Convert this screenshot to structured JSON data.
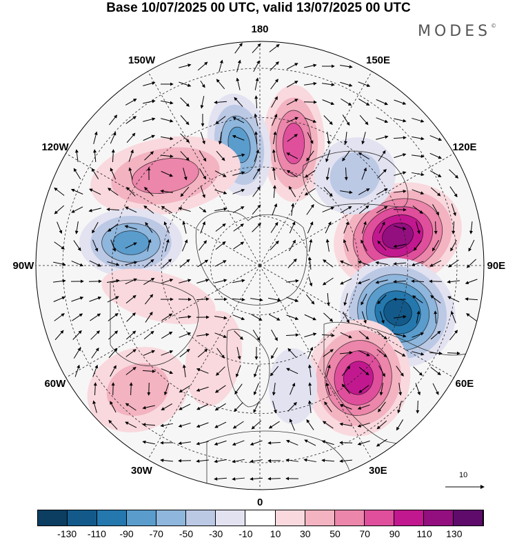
{
  "header": {
    "title": "Base 10/07/2025 00 UTC, valid 13/07/2025 00 UTC",
    "brand": "MODES"
  },
  "map": {
    "projection": "north-polar-stereographic",
    "longitude_labels": [
      {
        "lon": 180,
        "text": "180"
      },
      {
        "lon": 150,
        "text": "150E"
      },
      {
        "lon": 120,
        "text": "120E"
      },
      {
        "lon": 90,
        "text": "90E"
      },
      {
        "lon": 60,
        "text": "60E"
      },
      {
        "lon": 30,
        "text": "30E"
      },
      {
        "lon": 0,
        "text": "0"
      },
      {
        "lon": -30,
        "text": "30W"
      },
      {
        "lon": -60,
        "text": "60W"
      },
      {
        "lon": -90,
        "text": "90W"
      },
      {
        "lon": -120,
        "text": "120W"
      },
      {
        "lon": -150,
        "text": "150W"
      }
    ],
    "reference_vector": "10",
    "anomaly_centers": [
      {
        "sign": "positive",
        "level": 130
      },
      {
        "sign": "negative",
        "level": -130
      },
      {
        "sign": "positive",
        "level": 110
      },
      {
        "sign": "positive",
        "level": 90
      },
      {
        "sign": "negative",
        "level": -90
      },
      {
        "sign": "positive",
        "level": 70
      },
      {
        "sign": "negative",
        "level": -90
      },
      {
        "sign": "positive",
        "level": 50
      },
      {
        "sign": "negative",
        "level": -50
      },
      {
        "sign": "positive",
        "level": 30
      },
      {
        "sign": "negative",
        "level": -30
      },
      {
        "sign": "positive",
        "level": 30
      }
    ]
  },
  "colorbar": {
    "colors": [
      "#0b3e61",
      "#135a8a",
      "#2478ae",
      "#5a9ccc",
      "#8fb6dc",
      "#bcc9e5",
      "#e2e2f1",
      "#ffffff",
      "#f9d9de",
      "#f3b3c1",
      "#ec86ab",
      "#df4f9c",
      "#c2188f",
      "#930f7f",
      "#5e0b6b"
    ],
    "ticks": [
      "-130",
      "-110",
      "-90",
      "-70",
      "-50",
      "-30",
      "-10",
      "10",
      "30",
      "50",
      "70",
      "90",
      "110",
      "130"
    ]
  }
}
